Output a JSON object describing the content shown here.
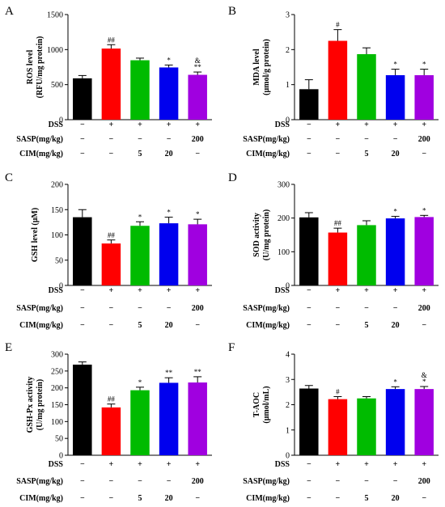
{
  "colors": [
    "#000000",
    "#ff0000",
    "#00bb00",
    "#0000ee",
    "#a000e0"
  ],
  "treatment_table": {
    "row_labels": [
      "DSS",
      "SASP(mg/kg)",
      "CIM(mg/kg)"
    ],
    "rows": [
      [
        "−",
        "+",
        "+",
        "+",
        "+"
      ],
      [
        "−",
        "−",
        "−",
        "−",
        "200"
      ],
      [
        "−",
        "−",
        "5",
        "20",
        "−"
      ]
    ]
  },
  "chart_data": [
    {
      "type": "bar",
      "panel": "A",
      "ylabel": [
        "ROS level",
        "(RFU/mg protein)"
      ],
      "ylim": [
        0,
        1500
      ],
      "yticks": [
        0,
        500,
        1000,
        1500
      ],
      "values": [
        590,
        1015,
        848,
        745,
        640
      ],
      "errors": [
        40,
        55,
        30,
        35,
        40
      ],
      "annotations": [
        "",
        "##",
        "",
        "*",
        "&\n**"
      ]
    },
    {
      "type": "bar",
      "panel": "B",
      "ylabel": [
        "MDA level",
        "(μmol/g protein)"
      ],
      "ylim": [
        0,
        3
      ],
      "yticks": [
        0,
        1,
        2,
        3
      ],
      "values": [
        0.87,
        2.25,
        1.87,
        1.27,
        1.27
      ],
      "errors": [
        0.27,
        0.32,
        0.18,
        0.17,
        0.17
      ],
      "annotations": [
        "",
        "#",
        "",
        "*",
        "*"
      ]
    },
    {
      "type": "bar",
      "panel": "C",
      "ylabel": [
        "GSH level (μM)"
      ],
      "ylim": [
        0,
        200
      ],
      "yticks": [
        0,
        50,
        100,
        150,
        200
      ],
      "values": [
        135,
        83,
        118,
        123,
        121
      ],
      "errors": [
        15,
        7,
        8,
        12,
        10
      ],
      "annotations": [
        "",
        "##",
        "*",
        "*",
        "*"
      ]
    },
    {
      "type": "bar",
      "panel": "D",
      "ylabel": [
        "SOD activity",
        "(U/mg protein)"
      ],
      "ylim": [
        0,
        300
      ],
      "yticks": [
        0,
        100,
        200,
        300
      ],
      "values": [
        202,
        157,
        179,
        199,
        203
      ],
      "errors": [
        14,
        13,
        13,
        6,
        5
      ],
      "annotations": [
        "",
        "##",
        "",
        "*",
        "*"
      ]
    },
    {
      "type": "bar",
      "panel": "E",
      "ylabel": [
        "GSH-Px activity",
        "(U/mg protein)"
      ],
      "ylim": [
        0,
        300
      ],
      "yticks": [
        0,
        50,
        100,
        150,
        200,
        250,
        300
      ],
      "values": [
        269,
        142,
        193,
        215,
        216
      ],
      "errors": [
        8,
        10,
        9,
        15,
        17
      ],
      "annotations": [
        "",
        "##",
        "*",
        "**",
        "**"
      ]
    },
    {
      "type": "bar",
      "panel": "F",
      "ylabel": [
        "T-AOC",
        "(μmol/mL)"
      ],
      "ylim": [
        0,
        4
      ],
      "yticks": [
        0,
        1,
        2,
        3,
        4
      ],
      "values": [
        2.64,
        2.22,
        2.25,
        2.62,
        2.62
      ],
      "errors": [
        0.12,
        0.1,
        0.07,
        0.09,
        0.1
      ],
      "annotations": [
        "",
        "#",
        "",
        "*",
        "&\n*"
      ]
    }
  ]
}
